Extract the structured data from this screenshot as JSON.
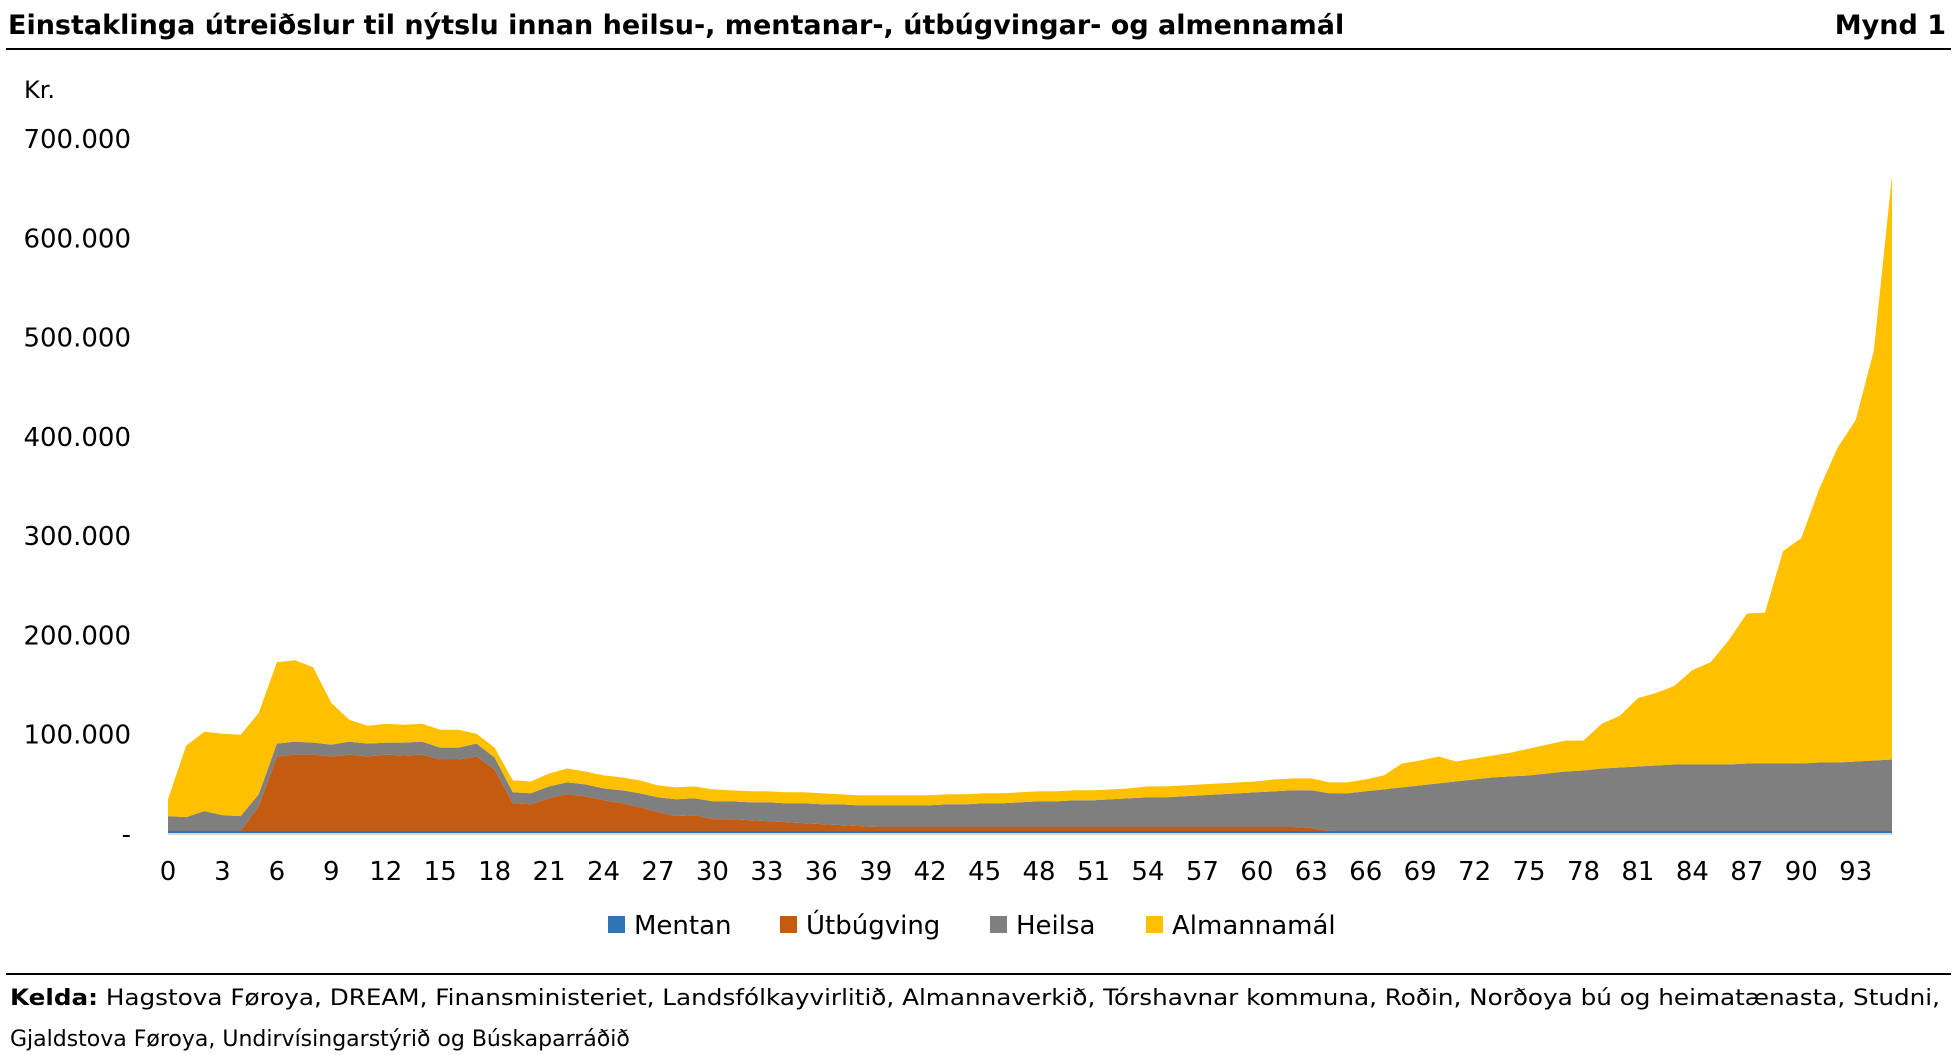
{
  "header": {
    "title": "Einstaklinga útreiðslur til nýtslu innan heilsu-, mentanar-, útbúgvingar- og almennamál",
    "figure_label": "Mynd 1"
  },
  "footer": {
    "source_label": "Kelda:",
    "source_line1": "Hagstova Føroya, DREAM, Finansministeriet, Landsfólkayvirlitið, Almannaverkið, Tórshavnar kommuna, Roðin, Norðoya bú og heimatænasta, Studni,",
    "source_line2": "Gjaldstova Føroya, Undirvísingarstýrið og Búskaparráðið"
  },
  "colors": {
    "mentan": "#2E75B6",
    "utbugving": "#C55A11",
    "heilsa": "#7F7F7F",
    "almannamal": "#FFC000"
  },
  "chart_data": {
    "type": "area",
    "stacked": true,
    "title": "",
    "xlabel": "",
    "ylabel": "Kr.",
    "ylim": [
      0,
      700000
    ],
    "yticks": [
      0,
      100000,
      200000,
      300000,
      400000,
      500000,
      600000,
      700000
    ],
    "ytick_labels": [
      "-",
      "100.000",
      "200.000",
      "300.000",
      "400.000",
      "500.000",
      "600.000",
      "700.000"
    ],
    "xtick_labels": [
      "0",
      "3",
      "6",
      "9",
      "12",
      "15",
      "18",
      "21",
      "24",
      "27",
      "30",
      "33",
      "36",
      "39",
      "42",
      "45",
      "48",
      "51",
      "54",
      "57",
      "60",
      "63",
      "66",
      "69",
      "72",
      "75",
      "78",
      "81",
      "84",
      "87",
      "90",
      "93"
    ],
    "grid": false,
    "legend": "bottom",
    "x": [
      0,
      1,
      2,
      3,
      4,
      5,
      6,
      7,
      8,
      9,
      10,
      11,
      12,
      13,
      14,
      15,
      16,
      17,
      18,
      19,
      20,
      21,
      22,
      23,
      24,
      25,
      26,
      27,
      28,
      29,
      30,
      31,
      32,
      33,
      34,
      35,
      36,
      37,
      38,
      39,
      40,
      41,
      42,
      43,
      44,
      45,
      46,
      47,
      48,
      49,
      50,
      51,
      52,
      53,
      54,
      55,
      56,
      57,
      58,
      59,
      60,
      61,
      62,
      63,
      64,
      65,
      66,
      67,
      68,
      69,
      70,
      71,
      72,
      73,
      74,
      75,
      76,
      77,
      78,
      79,
      80,
      81,
      82,
      83,
      84,
      85,
      86,
      87,
      88,
      89,
      90,
      91,
      92,
      93,
      94,
      95
    ],
    "series": [
      {
        "name": "Mentan",
        "values": [
          3000,
          3000,
          3000,
          3000,
          3000,
          3000,
          3000,
          3000,
          3000,
          3000,
          3000,
          3000,
          3000,
          3000,
          3000,
          3000,
          3000,
          3000,
          3000,
          3000,
          3000,
          3000,
          3000,
          3000,
          3000,
          3000,
          3000,
          3000,
          3000,
          3000,
          3000,
          3000,
          3000,
          3000,
          3000,
          3000,
          3000,
          3000,
          3000,
          3000,
          3000,
          3000,
          3000,
          3000,
          3000,
          3000,
          3000,
          3000,
          3000,
          3000,
          3000,
          3000,
          3000,
          3000,
          3000,
          3000,
          3000,
          3000,
          3000,
          3000,
          3000,
          3000,
          3000,
          3000,
          3000,
          3000,
          3000,
          3000,
          3000,
          3000,
          3000,
          3000,
          3000,
          3000,
          3000,
          3000,
          3000,
          3000,
          3000,
          3000,
          3000,
          3000,
          3000,
          3000,
          3000,
          3000,
          3000,
          3000,
          3000,
          3000,
          3000,
          3000,
          3000,
          3000,
          3000,
          3000
        ]
      },
      {
        "name": "Útbúgving",
        "values": [
          0,
          0,
          0,
          0,
          0,
          25000,
          75000,
          77000,
          77000,
          75000,
          77000,
          75000,
          77000,
          76000,
          77000,
          72000,
          72000,
          75000,
          62000,
          28000,
          27000,
          33000,
          37000,
          35000,
          31000,
          28000,
          24000,
          19000,
          15000,
          16000,
          12000,
          12000,
          11000,
          10000,
          9000,
          8000,
          7000,
          6000,
          5000,
          4000,
          4000,
          4000,
          4000,
          4000,
          4000,
          4000,
          4000,
          4000,
          4000,
          4000,
          4000,
          4000,
          4000,
          4000,
          4000,
          4000,
          4000,
          4000,
          4000,
          4000,
          4000,
          4000,
          4000,
          3000,
          0,
          0,
          0,
          0,
          0,
          0,
          0,
          0,
          0,
          0,
          0,
          0,
          0,
          0,
          0,
          0,
          0,
          0,
          0,
          0,
          0,
          0,
          0,
          0,
          0,
          0,
          0,
          0,
          0,
          0,
          0,
          0
        ]
      },
      {
        "name": "Heilsa",
        "values": [
          15000,
          14000,
          20000,
          16000,
          15000,
          12000,
          13000,
          13000,
          12000,
          12000,
          13000,
          13000,
          12000,
          13000,
          13000,
          12000,
          12000,
          13000,
          12000,
          11000,
          11000,
          12000,
          12000,
          12000,
          12000,
          13000,
          14000,
          15000,
          17000,
          17000,
          18000,
          18000,
          18000,
          19000,
          19000,
          20000,
          20000,
          21000,
          21000,
          22000,
          22000,
          22000,
          22000,
          23000,
          23000,
          24000,
          24000,
          25000,
          26000,
          26000,
          27000,
          27000,
          28000,
          29000,
          30000,
          30000,
          31000,
          32000,
          33000,
          34000,
          35000,
          36000,
          37000,
          38000,
          38000,
          38000,
          40000,
          42000,
          44000,
          46000,
          48000,
          50000,
          52000,
          54000,
          55000,
          56000,
          58000,
          60000,
          61000,
          63000,
          64000,
          65000,
          66000,
          67000,
          67000,
          67000,
          67000,
          68000,
          68000,
          68000,
          68000,
          69000,
          69000,
          70000,
          71000,
          72000
        ]
      },
      {
        "name": "Almannamál",
        "values": [
          17000,
          72000,
          80000,
          82000,
          82000,
          82000,
          82000,
          82000,
          76000,
          42000,
          22000,
          18000,
          19000,
          18000,
          18000,
          18000,
          18000,
          10000,
          10000,
          12000,
          12000,
          13000,
          14000,
          13000,
          13000,
          13000,
          13000,
          12000,
          12000,
          12000,
          12000,
          11000,
          11000,
          11000,
          11000,
          11000,
          11000,
          10000,
          10000,
          10000,
          10000,
          10000,
          10000,
          10000,
          10000,
          10000,
          10000,
          10000,
          10000,
          10000,
          10000,
          10000,
          10000,
          10000,
          11000,
          11000,
          11000,
          11000,
          11000,
          11000,
          11000,
          12000,
          12000,
          12000,
          11000,
          11000,
          12000,
          14000,
          24000,
          25000,
          27000,
          20000,
          21000,
          22000,
          24000,
          27000,
          29000,
          31000,
          30000,
          45000,
          52000,
          69000,
          73000,
          79000,
          95000,
          103000,
          125000,
          151000,
          152000,
          214000,
          227000,
          276000,
          317000,
          344000,
          413000,
          588000
        ]
      }
    ]
  }
}
